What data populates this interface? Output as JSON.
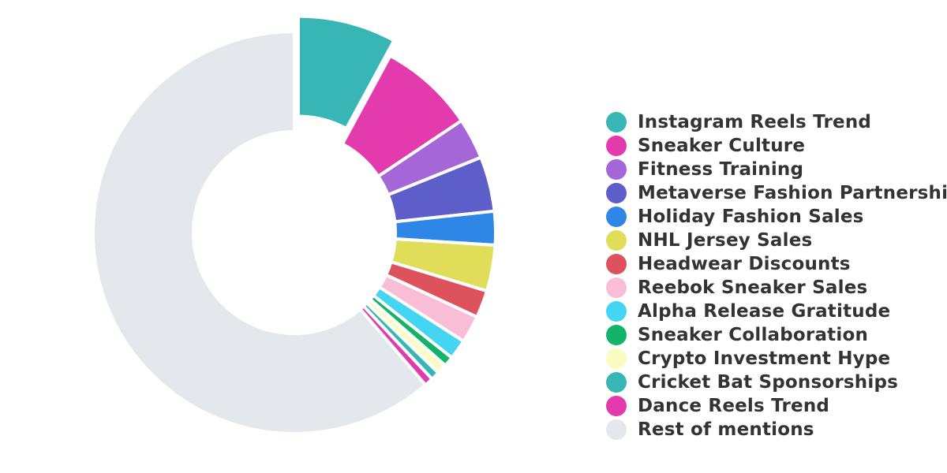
{
  "chart_data": {
    "type": "pie",
    "variant": "donut",
    "legend_position": "right",
    "exploded_slice": "Instagram Reels Trend",
    "slices": [
      {
        "label": "Instagram Reels Trend",
        "value": 7.9,
        "color": "#38b6b5"
      },
      {
        "label": "Sneaker Culture",
        "value": 7.7,
        "color": "#e33aae"
      },
      {
        "label": "Fitness Training",
        "value": 3.3,
        "color": "#a566d7"
      },
      {
        "label": "Metaverse Fashion Partnership",
        "value": 4.4,
        "color": "#5e5ecb"
      },
      {
        "label": "Holiday Fashion Sales",
        "value": 2.7,
        "color": "#2e86e6"
      },
      {
        "label": "NHL Jersey Sales",
        "value": 3.7,
        "color": "#e0dd58"
      },
      {
        "label": "Headwear Discounts",
        "value": 2.2,
        "color": "#dd525c"
      },
      {
        "label": "Reebok Sneaker Sales",
        "value": 2.2,
        "color": "#f9bdd5"
      },
      {
        "label": "Alpha Release Gratitude",
        "value": 1.6,
        "color": "#44d5f2"
      },
      {
        "label": "Sneaker Collaboration",
        "value": 0.8,
        "color": "#14b36a"
      },
      {
        "label": "Crypto Investment Hype",
        "value": 0.8,
        "color": "#fbfbc2"
      },
      {
        "label": "Cricket Bat Sponsorships",
        "value": 0.7,
        "color": "#38b6b5"
      },
      {
        "label": "Dance Reels Trend",
        "value": 0.7,
        "color": "#e33aae"
      },
      {
        "label": "Rest of mentions",
        "value": 61.3,
        "color": "#e4e7eb"
      }
    ]
  }
}
